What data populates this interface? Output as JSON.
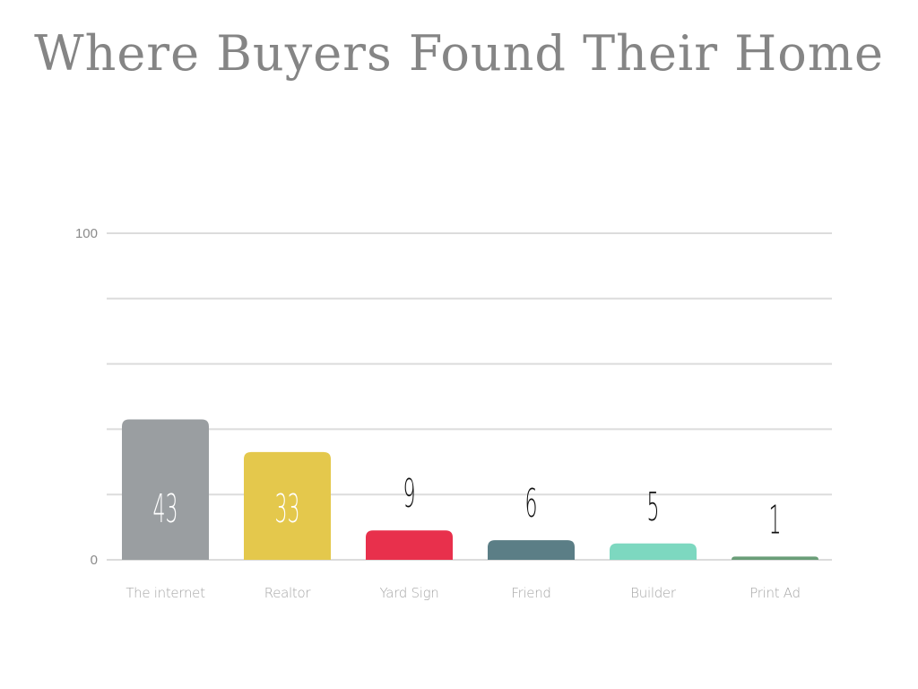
{
  "chart_data": {
    "type": "bar",
    "title": "Where Buyers Found Their Home",
    "categories": [
      "The internet",
      "Realtor",
      "Yard Sign",
      "Friend",
      "Builder",
      "Print Ad"
    ],
    "values": [
      43,
      33,
      9,
      6,
      5,
      1
    ],
    "colors": [
      "#9a9ea1",
      "#e4c84c",
      "#e8304c",
      "#5b7e86",
      "#7dd8c0",
      "#6a9e78"
    ],
    "ylim": [
      0,
      100
    ],
    "yticks": [
      0,
      20,
      40,
      60,
      80,
      100
    ],
    "ytick_labels": [
      "0",
      "",
      "",
      "",
      "",
      "100"
    ],
    "grid": true,
    "xlabel": "",
    "ylabel": ""
  }
}
